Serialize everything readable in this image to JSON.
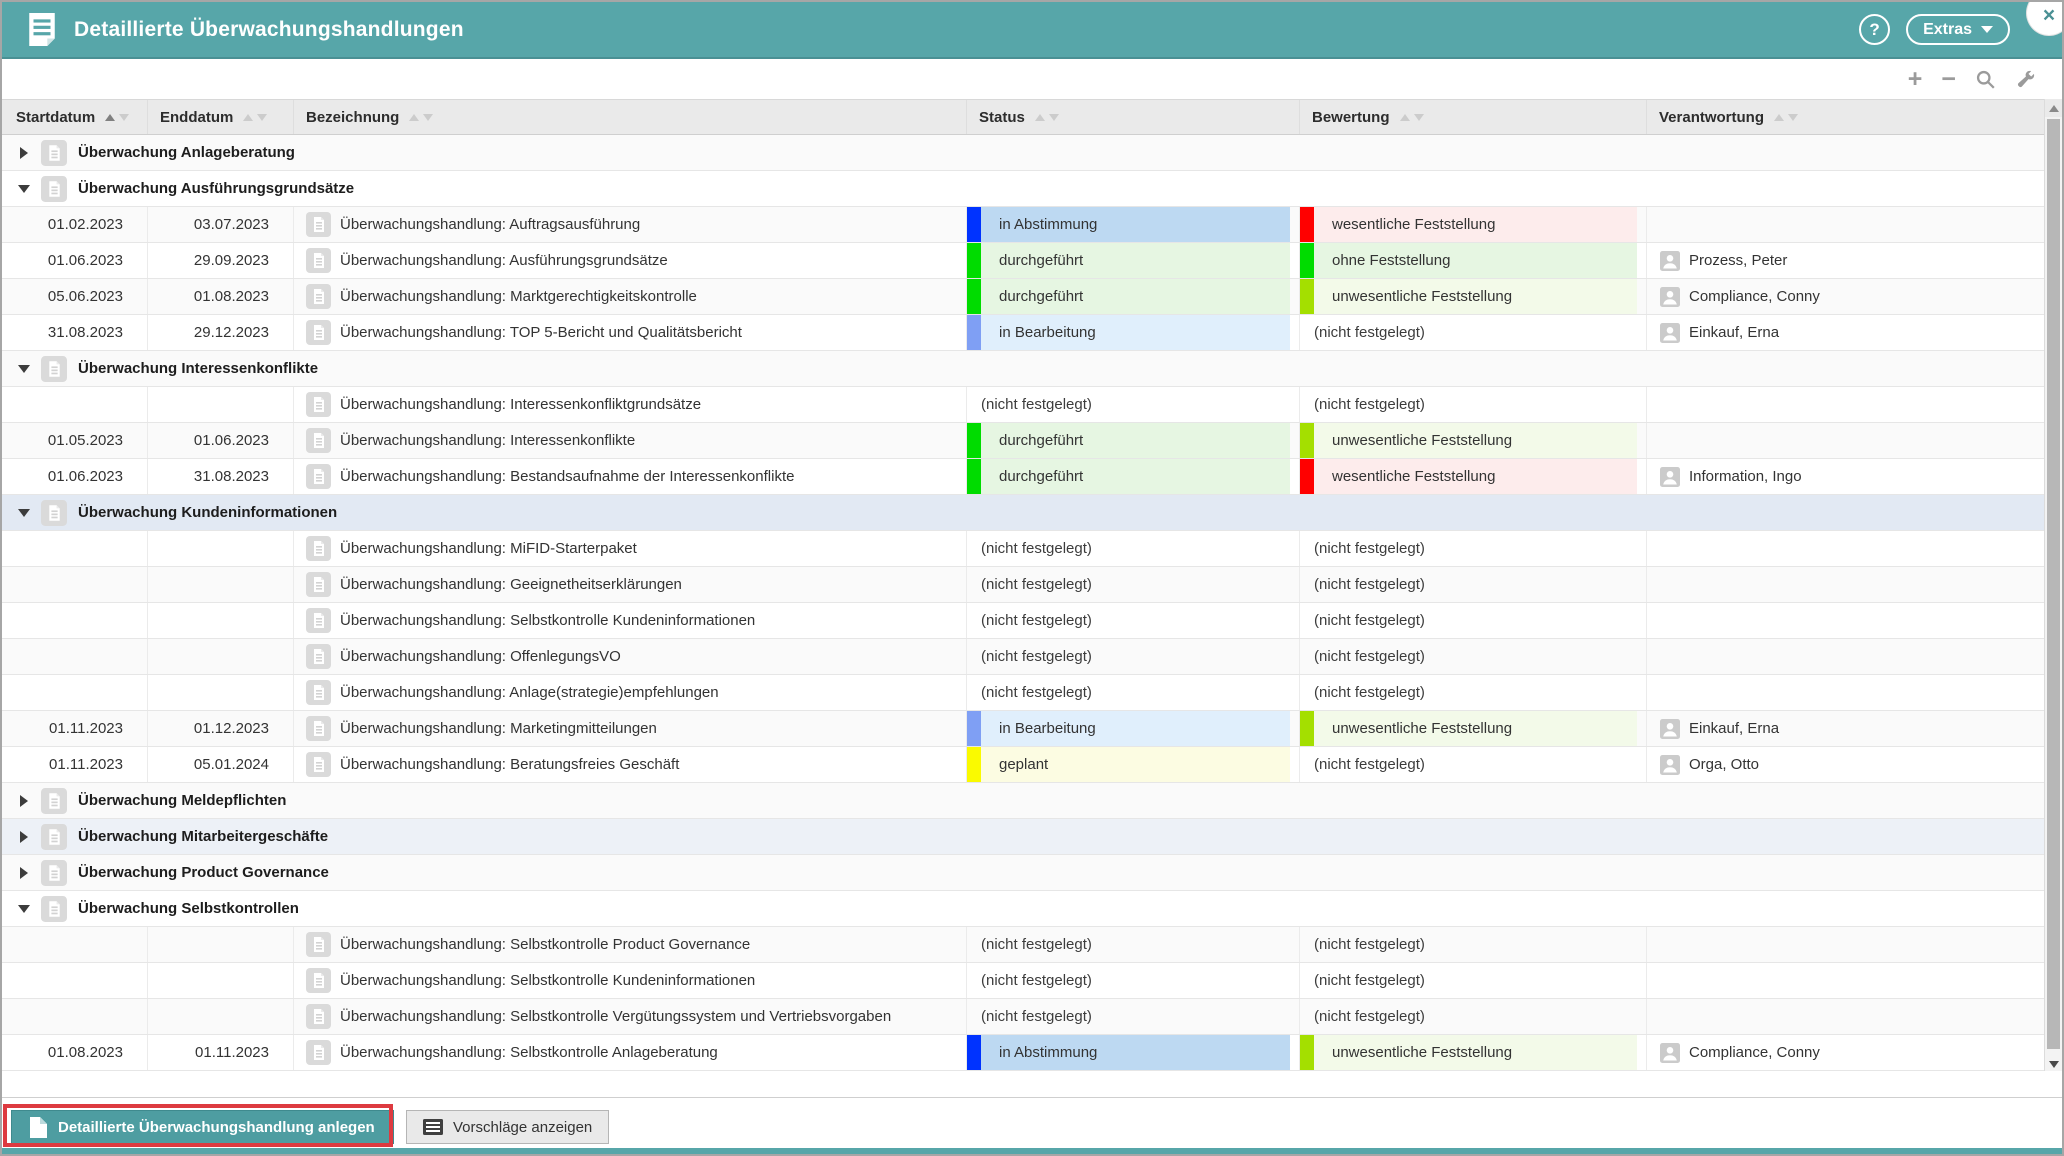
{
  "window": {
    "title": "Detaillierte Überwachungshandlungen",
    "help_label": "?",
    "extras_label": "Extras",
    "close_label": "×"
  },
  "toolbar": {
    "icons": [
      {
        "name": "add-icon",
        "glyph": "+"
      },
      {
        "name": "remove-icon",
        "glyph": "−"
      },
      {
        "name": "search-icon",
        "glyph": "svg-magnifier"
      },
      {
        "name": "wrench-icon",
        "glyph": "svg-wrench"
      }
    ]
  },
  "table": {
    "columns": [
      {
        "label": "Startdatum",
        "sort": "asc"
      },
      {
        "label": "Enddatum",
        "sort": "none"
      },
      {
        "label": "Bezeichnung",
        "sort": "none"
      },
      {
        "label": "Status",
        "sort": "none"
      },
      {
        "label": "Bewertung",
        "sort": "none"
      },
      {
        "label": "Verantwortung",
        "sort": "none"
      }
    ],
    "none_label": "(nicht festgelegt)",
    "status_styles": {
      "in_abstimmung": {
        "label": "in Abstimmung",
        "bar": "#0033ff",
        "bg": "#bdd9f2"
      },
      "durchgefuehrt": {
        "label": "durchgeführt",
        "bar": "#00dc00",
        "bg": "#e6f6e2"
      },
      "in_bearbeitung": {
        "label": "in Bearbeitung",
        "bar": "#7f9ff4",
        "bg": "#e0effc"
      },
      "geplant": {
        "label": "geplant",
        "bar": "#fafa00",
        "bg": "#fcfce2"
      }
    },
    "rating_styles": {
      "wesentlich": {
        "label": "wesentliche Feststellung",
        "bar": "#ff0000",
        "bg": "#fdecec"
      },
      "ohne": {
        "label": "ohne Feststellung",
        "bar": "#00dc00",
        "bg": "#e6f6e2"
      },
      "unwesentlich": {
        "label": "unwesentliche Feststellung",
        "bar": "#a4df00",
        "bg": "#f3fae9"
      }
    },
    "rows": [
      {
        "type": "group",
        "expanded": false,
        "label": "Überwachung Anlageberatung"
      },
      {
        "type": "group",
        "expanded": true,
        "label": "Überwachung Ausführungsgrundsätze"
      },
      {
        "type": "item",
        "start": "01.02.2023",
        "end": "03.07.2023",
        "name": "Überwachungshandlung: Auftragsausführung",
        "status": "in_abstimmung",
        "rating": "wesentlich",
        "responsible": null
      },
      {
        "type": "item",
        "start": "01.06.2023",
        "end": "29.09.2023",
        "name": "Überwachungshandlung: Ausführungsgrundsätze",
        "status": "durchgefuehrt",
        "rating": "ohne",
        "responsible": "Prozess, Peter"
      },
      {
        "type": "item",
        "start": "05.06.2023",
        "end": "01.08.2023",
        "name": "Überwachungshandlung: Marktgerechtigkeitskontrolle",
        "status": "durchgefuehrt",
        "rating": "unwesentlich",
        "responsible": "Compliance, Conny"
      },
      {
        "type": "item",
        "start": "31.08.2023",
        "end": "29.12.2023",
        "name": "Überwachungshandlung: TOP 5-Bericht und Qualitätsbericht",
        "status": "in_bearbeitung",
        "rating": null,
        "responsible": "Einkauf, Erna"
      },
      {
        "type": "group",
        "expanded": true,
        "label": "Überwachung Interessenkonflikte"
      },
      {
        "type": "item",
        "start": "",
        "end": "",
        "name": "Überwachungshandlung: Interessenkonfliktgrundsätze",
        "status": null,
        "rating": null,
        "responsible": null
      },
      {
        "type": "item",
        "start": "01.05.2023",
        "end": "01.06.2023",
        "name": "Überwachungshandlung: Interessenkonflikte",
        "status": "durchgefuehrt",
        "rating": "unwesentlich",
        "responsible": null
      },
      {
        "type": "item",
        "start": "01.06.2023",
        "end": "31.08.2023",
        "name": "Überwachungshandlung: Bestandsaufnahme der Interessenkonflikte",
        "status": "durchgefuehrt",
        "rating": "wesentlich",
        "responsible": "Information, Ingo"
      },
      {
        "type": "group",
        "expanded": true,
        "label": "Überwachung Kundeninformationen",
        "highlight": "selected"
      },
      {
        "type": "item",
        "start": "",
        "end": "",
        "name": "Überwachungshandlung: MiFID-Starterpaket",
        "status": null,
        "rating": null,
        "responsible": null
      },
      {
        "type": "item",
        "start": "",
        "end": "",
        "name": "Überwachungshandlung: Geeignetheitserklärungen",
        "status": null,
        "rating": null,
        "responsible": null
      },
      {
        "type": "item",
        "start": "",
        "end": "",
        "name": "Überwachungshandlung: Selbstkontrolle Kundeninformationen",
        "status": null,
        "rating": null,
        "responsible": null
      },
      {
        "type": "item",
        "start": "",
        "end": "",
        "name": "Überwachungshandlung: OffenlegungsVO",
        "status": null,
        "rating": null,
        "responsible": null
      },
      {
        "type": "item",
        "start": "",
        "end": "",
        "name": "Überwachungshandlung: Anlage(strategie)empfehlungen",
        "status": null,
        "rating": null,
        "responsible": null
      },
      {
        "type": "item",
        "start": "01.11.2023",
        "end": "01.12.2023",
        "name": "Überwachungshandlung: Marketingmitteilungen",
        "status": "in_bearbeitung",
        "rating": "unwesentlich",
        "responsible": "Einkauf, Erna"
      },
      {
        "type": "item",
        "start": "01.11.2023",
        "end": "05.01.2024",
        "name": "Überwachungshandlung: Beratungsfreies Geschäft",
        "status": "geplant",
        "rating": null,
        "responsible": "Orga, Otto"
      },
      {
        "type": "group",
        "expanded": false,
        "label": "Überwachung Meldepflichten"
      },
      {
        "type": "group",
        "expanded": false,
        "label": "Überwachung Mitarbeitergeschäfte",
        "highlight": "alt"
      },
      {
        "type": "group",
        "expanded": false,
        "label": "Überwachung Product Governance"
      },
      {
        "type": "group",
        "expanded": true,
        "label": "Überwachung Selbstkontrollen"
      },
      {
        "type": "item",
        "start": "",
        "end": "",
        "name": "Überwachungshandlung: Selbstkontrolle Product Governance",
        "status": null,
        "rating": null,
        "responsible": null
      },
      {
        "type": "item",
        "start": "",
        "end": "",
        "name": "Überwachungshandlung: Selbstkontrolle Kundeninformationen",
        "status": null,
        "rating": null,
        "responsible": null
      },
      {
        "type": "item",
        "start": "",
        "end": "",
        "name": "Überwachungshandlung: Selbstkontrolle Vergütungssystem und Vertriebsvorgaben",
        "status": null,
        "rating": null,
        "responsible": null
      },
      {
        "type": "item",
        "start": "01.08.2023",
        "end": "01.11.2023",
        "name": "Überwachungshandlung: Selbstkontrolle Anlageberatung",
        "status": "in_abstimmung",
        "rating": "unwesentlich",
        "responsible": "Compliance, Conny"
      }
    ]
  },
  "footer": {
    "create_label": "Detaillierte Überwachungshandlung anlegen",
    "suggest_label": "Vorschläge anzeigen"
  },
  "colors": {
    "titlebar": "#57a6a9",
    "annotation": "#dd3a40",
    "header_bg": "#eaeaea"
  }
}
